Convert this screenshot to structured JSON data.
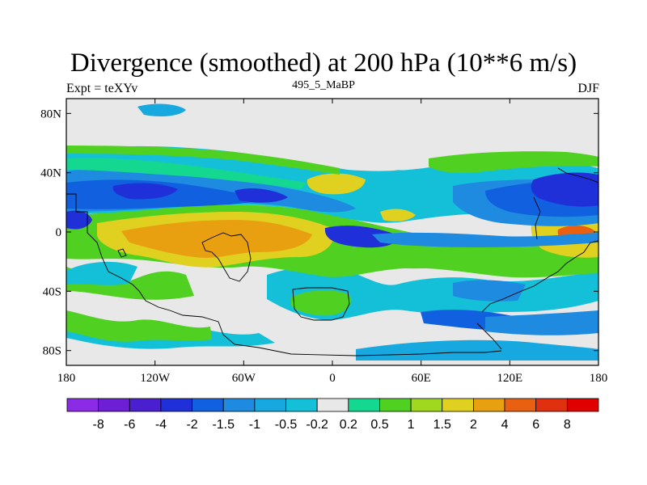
{
  "chart_data": {
    "type": "heatmap",
    "title": "Divergence (smoothed) at 200 hPa (10**6 m/s)",
    "left_string": "Expt = teXYv",
    "center_string": "495_5_MaBP",
    "right_string": "DJF",
    "xlim": [
      -180,
      180
    ],
    "ylim": [
      -90,
      90
    ],
    "x_ticks": [
      {
        "value": -180,
        "label": "180"
      },
      {
        "value": -120,
        "label": "120W"
      },
      {
        "value": -60,
        "label": "60W"
      },
      {
        "value": 0,
        "label": "0"
      },
      {
        "value": 60,
        "label": "60E"
      },
      {
        "value": 120,
        "label": "120E"
      },
      {
        "value": 180,
        "label": "180"
      }
    ],
    "y_ticks": [
      {
        "value": 80,
        "label": "80N"
      },
      {
        "value": 40,
        "label": "40N"
      },
      {
        "value": 0,
        "label": "0"
      },
      {
        "value": -40,
        "label": "40S"
      },
      {
        "value": -80,
        "label": "80S"
      }
    ],
    "colorbar": {
      "levels": [
        "-8",
        "-6",
        "-4",
        "-2",
        "-1.5",
        "-1",
        "-0.5",
        "-0.2",
        "0.2",
        "0.5",
        "1",
        "1.5",
        "2",
        "4",
        "6",
        "8"
      ],
      "colors": [
        "#8c2be6",
        "#6d1fd6",
        "#4a1fd0",
        "#2030d8",
        "#1060e0",
        "#1e8ae0",
        "#18a8e0",
        "#14c0d8",
        "#e8e8e8",
        "#14d890",
        "#50d020",
        "#a0d820",
        "#e0d020",
        "#e8a010",
        "#e86010",
        "#e03010",
        "#e00000"
      ]
    },
    "contour_zones": [
      {
        "band": "south",
        "lat_range": [
          -90,
          -60
        ],
        "dominant_level": "-0.5"
      },
      {
        "band": "northern subtropics",
        "lat_range": [
          15,
          45
        ],
        "dominant_level": "-2"
      },
      {
        "band": "tropics",
        "lat_range": [
          -20,
          10
        ],
        "dominant_level": "2"
      },
      {
        "band": "high north",
        "lat_range": [
          60,
          90
        ],
        "dominant_level": "0"
      }
    ]
  }
}
